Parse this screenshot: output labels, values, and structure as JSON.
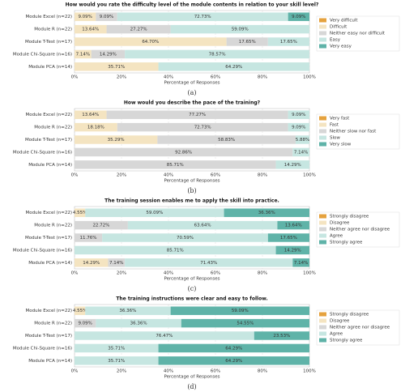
{
  "chart_data": [
    {
      "type": "bar",
      "orientation": "horizontal",
      "stacked": true,
      "grid": true,
      "legend": "right",
      "title": "How would you rate the difficulty level of the module contents in relation to your skill level?",
      "xlabel": "Percentage of Responses",
      "caption": "(a)",
      "categories": [
        "Module Excel (n=22)",
        "Module R (n=22)",
        "Module T-Test (n=17)",
        "Module Chi-Square (n=16)",
        "Module PCA (n=14)"
      ],
      "xlim": [
        0,
        100
      ],
      "xticks": [
        {
          "value": 0,
          "label": "0%"
        },
        {
          "value": 20,
          "label": "20%"
        },
        {
          "value": 40,
          "label": "40%"
        },
        {
          "value": 60,
          "label": "60%"
        },
        {
          "value": 80,
          "label": "80%"
        },
        {
          "value": 100,
          "label": "100%"
        }
      ],
      "series": [
        {
          "name": "Very difficult",
          "color": "#e5a23e",
          "values": [
            0,
            0,
            0,
            0,
            0
          ],
          "value_labels": [
            null,
            null,
            null,
            null,
            null
          ]
        },
        {
          "name": "Difficult",
          "color": "#f4e4c1",
          "values": [
            9.09,
            13.64,
            64.7,
            7.14,
            35.71
          ],
          "value_labels": [
            "9.09%",
            "13.64%",
            "64.70%",
            "7.14%",
            "35.71%"
          ]
        },
        {
          "name": "Neither easy nor difficult",
          "color": "#d7d7d7",
          "values": [
            9.09,
            27.27,
            17.65,
            14.29,
            0
          ],
          "value_labels": [
            "9.09%",
            "27.27%",
            "17.65%",
            "14.29%",
            null
          ]
        },
        {
          "name": "Easy",
          "color": "#c6e6e1",
          "values": [
            72.73,
            59.09,
            17.65,
            78.57,
            64.29
          ],
          "value_labels": [
            "72.73%",
            "59.09%",
            "17.65%",
            "78.57%",
            "64.29%"
          ]
        },
        {
          "name": "Very easy",
          "color": "#5fb3a8",
          "values": [
            9.09,
            0,
            0,
            0,
            0
          ],
          "value_labels": [
            "9.09%",
            null,
            null,
            null,
            null
          ]
        }
      ]
    },
    {
      "type": "bar",
      "orientation": "horizontal",
      "stacked": true,
      "grid": true,
      "legend": "right",
      "title": "How would you describe the pace of the training?",
      "xlabel": "Percentage of Responses",
      "caption": "(b)",
      "categories": [
        "Module Excel (n=22)",
        "Module R (n=22)",
        "Module T-Test (n=17)",
        "Module Chi-Square (n=16)",
        "Module PCA (n=14)"
      ],
      "xlim": [
        0,
        100
      ],
      "xticks": [
        {
          "value": 0,
          "label": "0%"
        },
        {
          "value": 20,
          "label": "20%"
        },
        {
          "value": 40,
          "label": "40%"
        },
        {
          "value": 60,
          "label": "60%"
        },
        {
          "value": 80,
          "label": "80%"
        },
        {
          "value": 100,
          "label": "100%"
        }
      ],
      "series": [
        {
          "name": "Very fast",
          "color": "#e5a23e",
          "values": [
            0,
            0,
            0,
            0,
            0
          ],
          "value_labels": [
            null,
            null,
            null,
            null,
            null
          ]
        },
        {
          "name": "Fast",
          "color": "#f4e4c1",
          "values": [
            13.64,
            18.18,
            35.29,
            0,
            0
          ],
          "value_labels": [
            "13.64%",
            "18.18%",
            "35.29%",
            null,
            null
          ]
        },
        {
          "name": "Neither slow nor fast",
          "color": "#d7d7d7",
          "values": [
            77.27,
            72.73,
            58.83,
            92.86,
            85.71
          ],
          "value_labels": [
            "77.27%",
            "72.73%",
            "58.83%",
            "92.86%",
            "85.71%"
          ]
        },
        {
          "name": "Slow",
          "color": "#c6e6e1",
          "values": [
            9.09,
            9.09,
            5.88,
            7.14,
            14.29
          ],
          "value_labels": [
            "9.09%",
            "9.09%",
            "5.88%",
            "7.14%",
            "14.29%"
          ]
        },
        {
          "name": "Very slow",
          "color": "#5fb3a8",
          "values": [
            0,
            0,
            0,
            0,
            0
          ],
          "value_labels": [
            null,
            null,
            null,
            null,
            null
          ]
        }
      ]
    },
    {
      "type": "bar",
      "orientation": "horizontal",
      "stacked": true,
      "grid": true,
      "legend": "right",
      "title": "The training session enables me to apply the skill into practice.",
      "xlabel": "Percentage of Responses",
      "caption": "(c)",
      "categories": [
        "Module Excel (n=22)",
        "Module R (n=22)",
        "Module T-Test (n=17)",
        "Module Chi-Square (n=16)",
        "Module PCA (n=14)"
      ],
      "xlim": [
        0,
        100
      ],
      "xticks": [
        {
          "value": 0,
          "label": "0%"
        },
        {
          "value": 20,
          "label": "20%"
        },
        {
          "value": 40,
          "label": "40%"
        },
        {
          "value": 60,
          "label": "60%"
        },
        {
          "value": 80,
          "label": "80%"
        },
        {
          "value": 100,
          "label": "100%"
        }
      ],
      "series": [
        {
          "name": "Strongly disagree",
          "color": "#e5a23e",
          "values": [
            0,
            0,
            0,
            0,
            0
          ],
          "value_labels": [
            null,
            null,
            null,
            null,
            null
          ]
        },
        {
          "name": "Disagree",
          "color": "#f4e4c1",
          "values": [
            4.55,
            0,
            0,
            0,
            14.29
          ],
          "value_labels": [
            "4.55%",
            null,
            null,
            null,
            "14.29%"
          ]
        },
        {
          "name": "Neither agree nor disagree",
          "color": "#d7d7d7",
          "values": [
            0,
            22.72,
            11.76,
            0,
            7.14
          ],
          "value_labels": [
            null,
            "22.72%",
            "11.76%",
            null,
            "7.14%"
          ]
        },
        {
          "name": "Agree",
          "color": "#c6e6e1",
          "values": [
            59.09,
            63.64,
            70.59,
            85.71,
            71.43
          ],
          "value_labels": [
            "59.09%",
            "63.64%",
            "70.59%",
            "85.71%",
            "71.43%"
          ]
        },
        {
          "name": "Strongly agree",
          "color": "#5fb3a8",
          "values": [
            36.36,
            13.64,
            17.65,
            14.29,
            7.14
          ],
          "value_labels": [
            "36.36%",
            "13.64%",
            "17.65%",
            "14.29%",
            "7.14%"
          ]
        }
      ]
    },
    {
      "type": "bar",
      "orientation": "horizontal",
      "stacked": true,
      "grid": true,
      "legend": "right",
      "title": "The training instructions were clear and easy to follow.",
      "xlabel": "Percentage of Responses",
      "caption": "(d)",
      "categories": [
        "Module Excel (n=22)",
        "Module R (n=22)",
        "Module T-Test (n=17)",
        "Module Chi-Square (n=16)",
        "Module PCA (n=14)"
      ],
      "xlim": [
        0,
        100
      ],
      "xticks": [
        {
          "value": 0,
          "label": "0%"
        },
        {
          "value": 20,
          "label": "20%"
        },
        {
          "value": 40,
          "label": "40%"
        },
        {
          "value": 60,
          "label": "60%"
        },
        {
          "value": 80,
          "label": "80%"
        },
        {
          "value": 100,
          "label": "100%"
        }
      ],
      "series": [
        {
          "name": "Strongly disagree",
          "color": "#e5a23e",
          "values": [
            0,
            0,
            0,
            0,
            0
          ],
          "value_labels": [
            null,
            null,
            null,
            null,
            null
          ]
        },
        {
          "name": "Disagree",
          "color": "#f4e4c1",
          "values": [
            4.55,
            0,
            0,
            0,
            0
          ],
          "value_labels": [
            "4.55%",
            null,
            null,
            null,
            null
          ]
        },
        {
          "name": "Neither agree nor disagree",
          "color": "#d7d7d7",
          "values": [
            0,
            9.09,
            0,
            0,
            0
          ],
          "value_labels": [
            null,
            "9.09%",
            null,
            null,
            null
          ]
        },
        {
          "name": "Agree",
          "color": "#c6e6e1",
          "values": [
            36.36,
            36.36,
            76.47,
            35.71,
            35.71
          ],
          "value_labels": [
            "36.36%",
            "36.36%",
            "76.47%",
            "35.71%",
            "35.71%"
          ]
        },
        {
          "name": "Strongly agree",
          "color": "#5fb3a8",
          "values": [
            59.09,
            54.55,
            23.53,
            64.29,
            64.29
          ],
          "value_labels": [
            "59.09%",
            "54.55%",
            "23.53%",
            "64.29%",
            "64.29%"
          ]
        }
      ]
    }
  ]
}
